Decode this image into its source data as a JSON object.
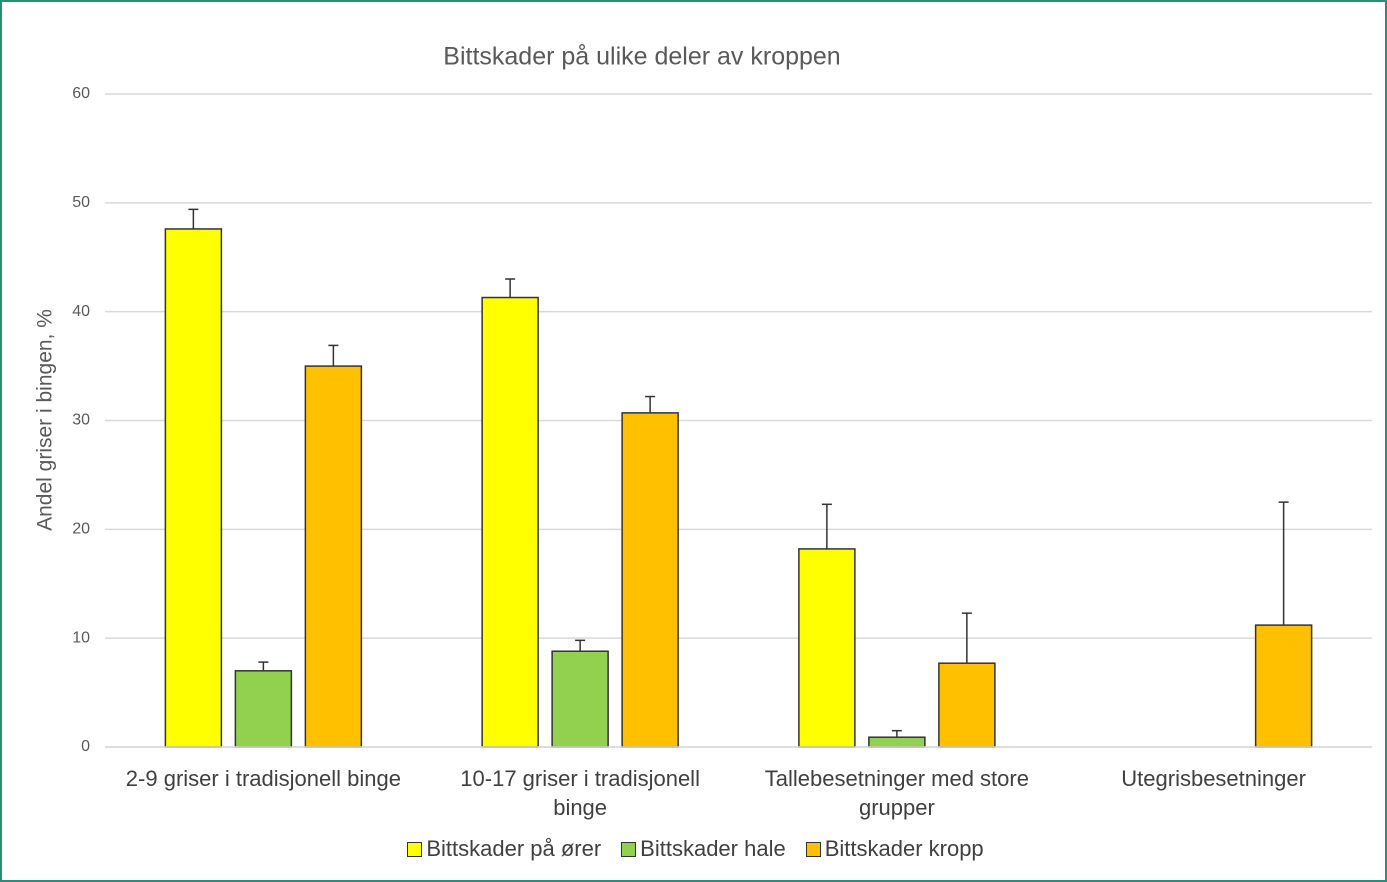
{
  "chart_data": {
    "type": "bar",
    "title": "Bittskader på ulike deler av kroppen",
    "y_label": "Andel griser i bingen, %",
    "categories": [
      "2-9 griser i tradisjonell binge",
      "10-17 griser i tradisjonell binge",
      "Tallebesetninger med store grupper",
      "Utegrisbesetninger"
    ],
    "series": [
      {
        "name": "Bittskader på ører",
        "color": "#ffff00",
        "values": [
          47.6,
          41.3,
          18.2,
          null
        ],
        "errors": [
          1.8,
          1.7,
          4.1,
          null
        ]
      },
      {
        "name": "Bittskader hale",
        "color": "#92d050",
        "values": [
          7.0,
          8.8,
          0.9,
          null
        ],
        "errors": [
          0.8,
          1.0,
          0.6,
          null
        ]
      },
      {
        "name": "Bittskader kropp",
        "color": "#ffc000",
        "values": [
          35.0,
          30.7,
          7.7,
          11.2
        ],
        "errors": [
          1.9,
          1.5,
          4.6,
          11.3
        ]
      }
    ],
    "ylim": [
      0,
      60
    ],
    "yticks": [
      0,
      10,
      20,
      30,
      40,
      50,
      60
    ],
    "grid": true,
    "legend": "bottom"
  }
}
